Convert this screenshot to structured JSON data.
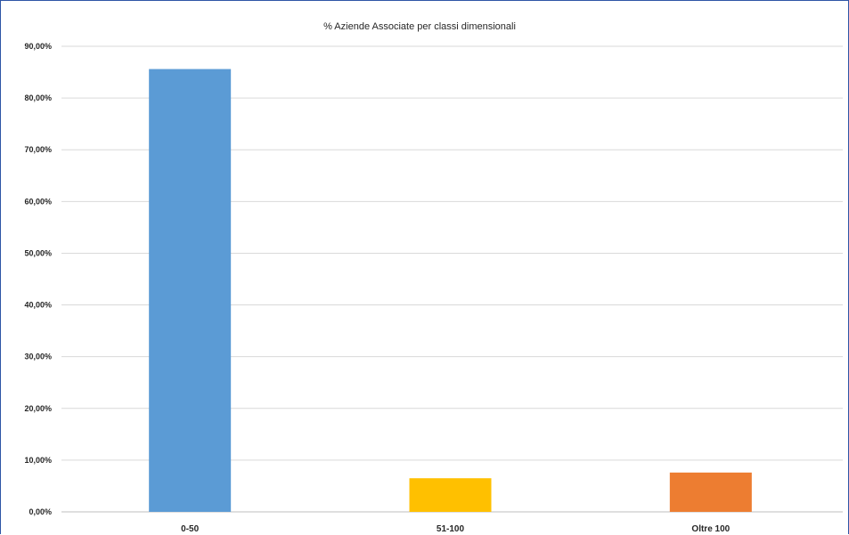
{
  "chart_data": {
    "type": "bar",
    "title": "% Aziende Associate per classi dimensionali",
    "categories": [
      "0-50",
      "51-100",
      "Oltre 100"
    ],
    "values": [
      85.6,
      6.5,
      7.6
    ],
    "colors": [
      "#5b9bd5",
      "#ffc000",
      "#ed7d31"
    ],
    "ylim": [
      0,
      90
    ],
    "yticks": [
      0,
      10,
      20,
      30,
      40,
      50,
      60,
      70,
      80,
      90
    ],
    "ytick_labels": [
      "0,00%",
      "10,00%",
      "20,00%",
      "30,00%",
      "40,00%",
      "50,00%",
      "60,00%",
      "70,00%",
      "80,00%",
      "90,00%"
    ],
    "grid": true,
    "xlabel": "",
    "ylabel": ""
  },
  "colors": {
    "frame": "#2e55a6",
    "grid": "#d9d9d9",
    "text": "#262626"
  }
}
